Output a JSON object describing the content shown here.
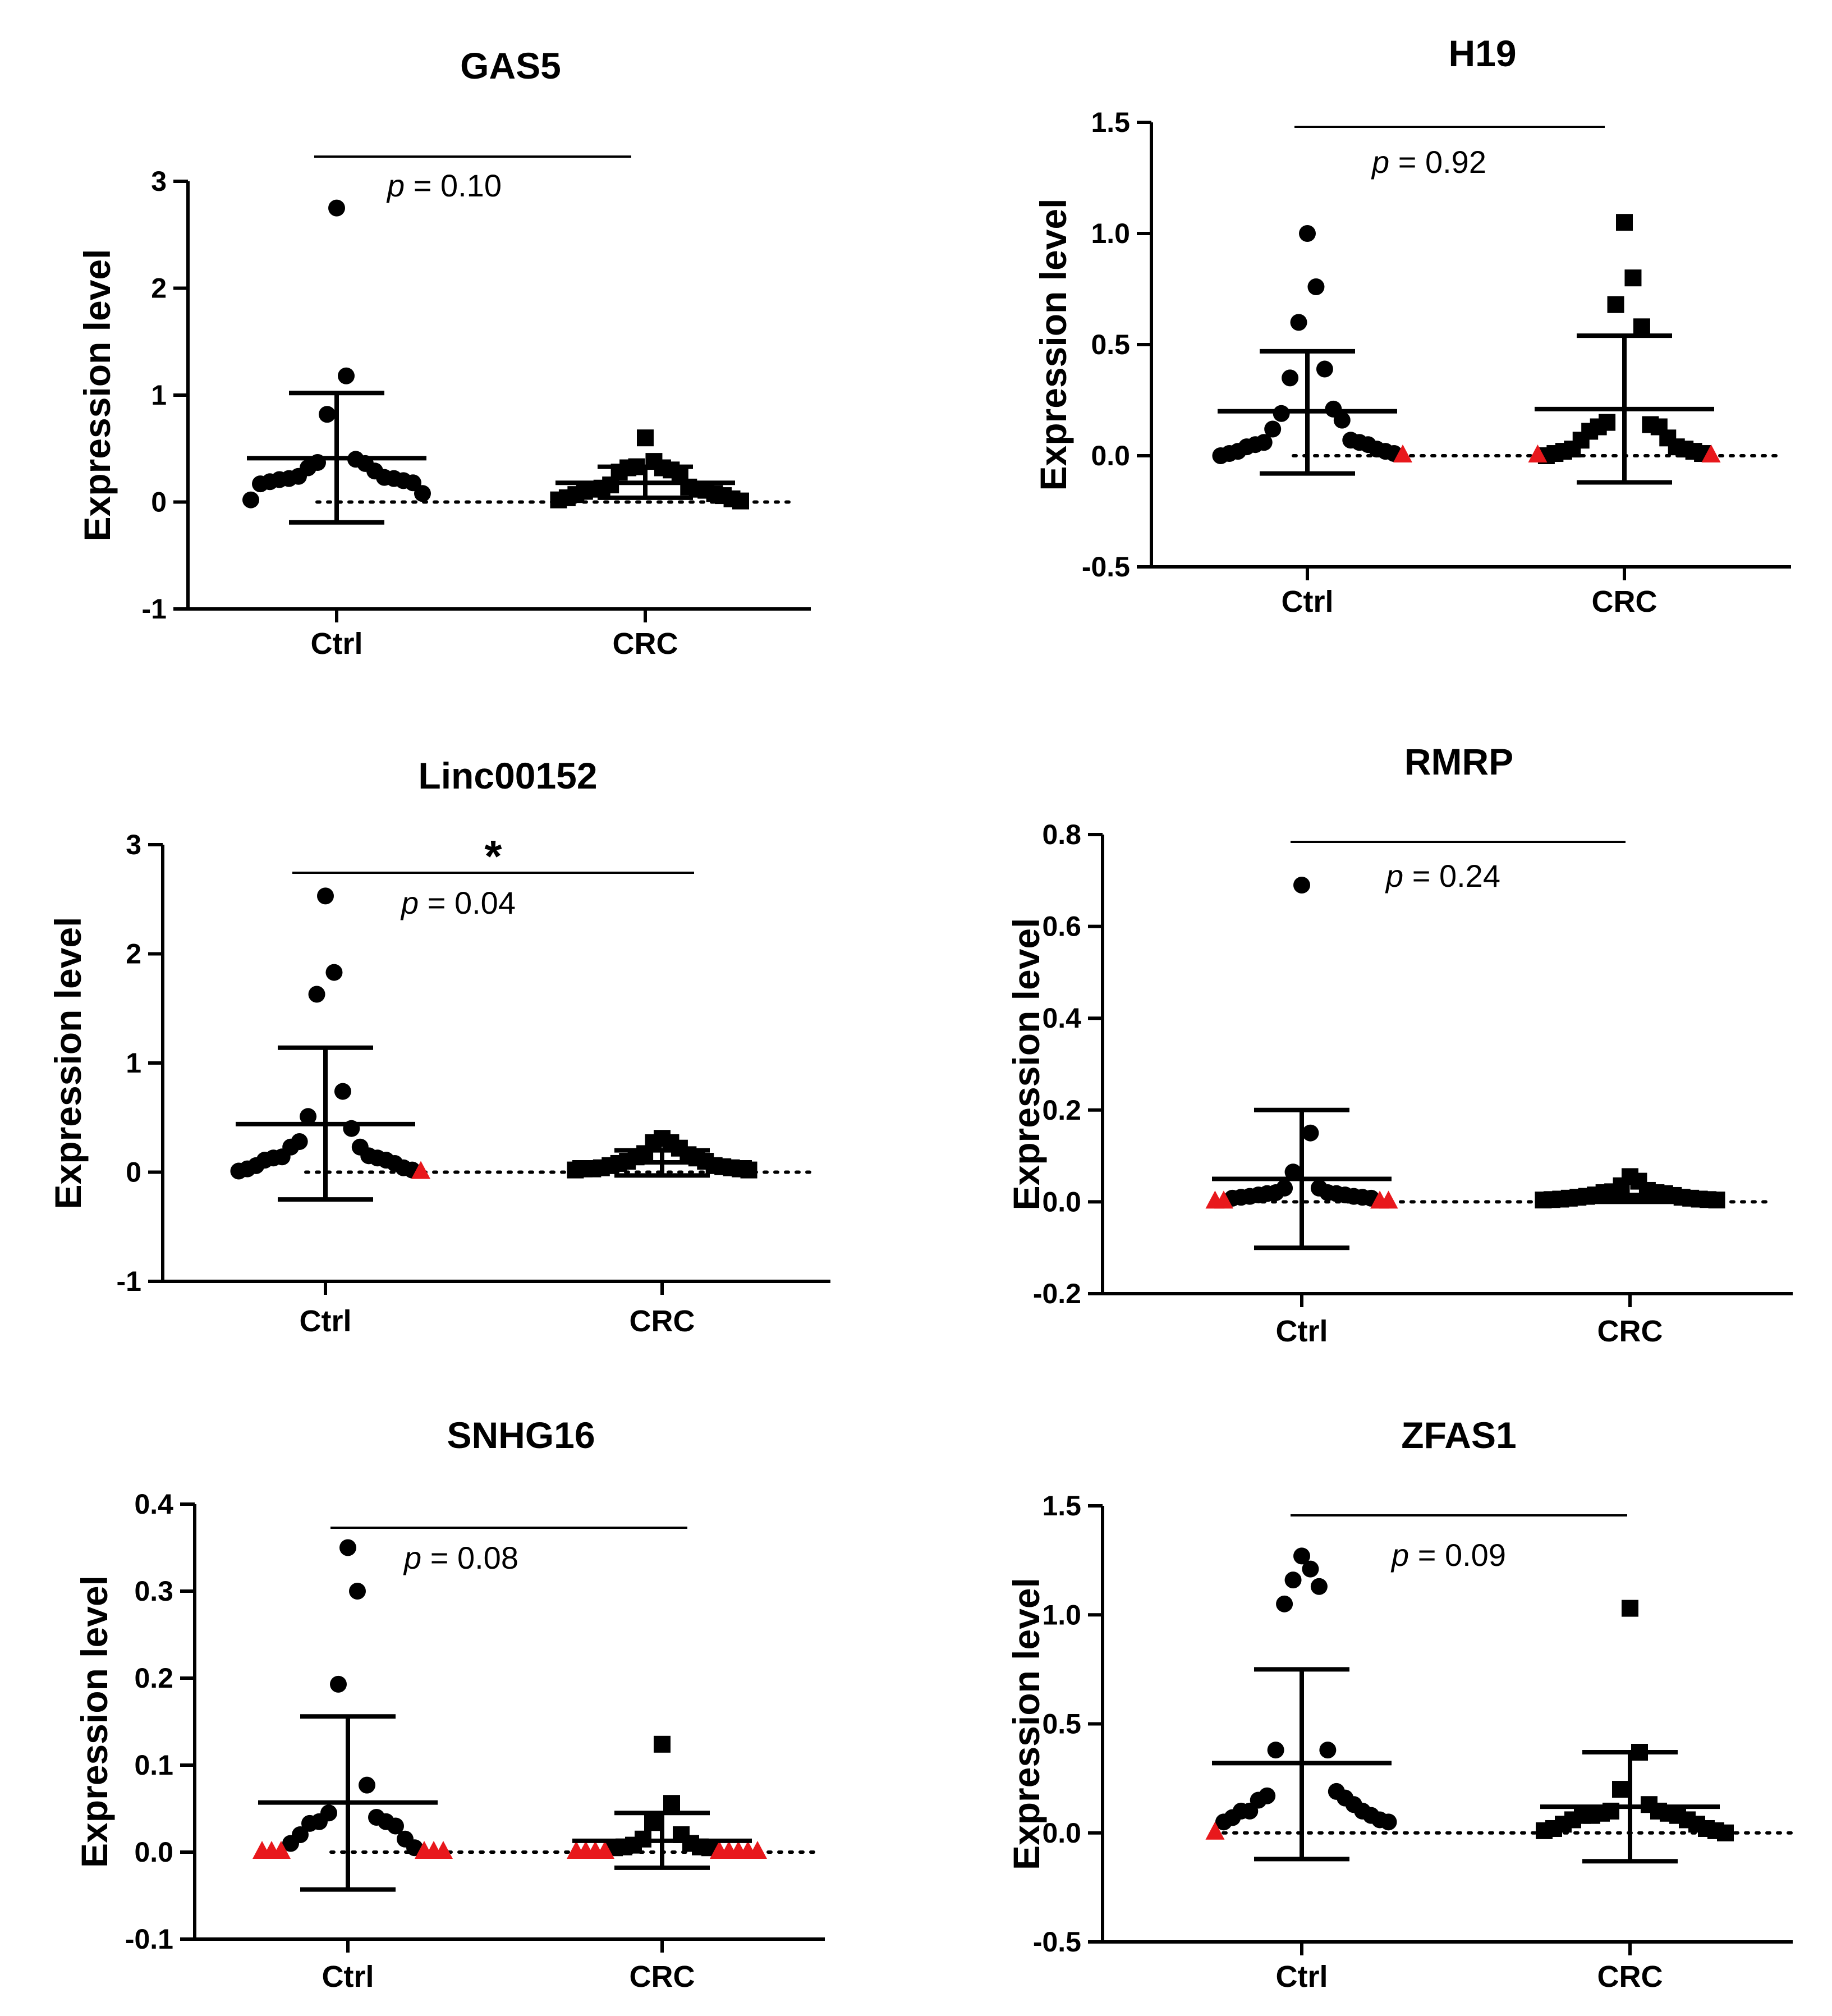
{
  "colors": {
    "ink": "#000000",
    "censored": "#e8181c"
  },
  "chart_data": [
    {
      "type": "scatter",
      "title": "GAS5",
      "ylabel": "Expression level",
      "categories": [
        "Ctrl",
        "CRC"
      ],
      "ylim": [
        -1,
        3
      ],
      "yticks": [
        "3",
        "2",
        "1",
        "0",
        "-1"
      ],
      "p_text": {
        "p": "p",
        "rest": " = 0.10"
      },
      "significance": "",
      "groups": [
        {
          "name": "Ctrl",
          "marker": "circle",
          "mean": 0.41,
          "sd_upper": 1.02,
          "sd_lower": -0.19,
          "values": [
            2.75,
            1.18,
            0.82,
            0.4,
            0.36,
            0.29,
            0.37,
            0.23,
            0.22,
            0.2,
            0.24,
            0.21,
            0.32,
            0.18,
            0.08,
            0.02,
            0.17,
            0.19,
            0.22
          ],
          "censored": []
        },
        {
          "name": "CRC",
          "marker": "square",
          "mean": 0.18,
          "sd_upper": 0.33,
          "sd_lower": 0.04,
          "values": [
            0.6,
            0.38,
            0.33,
            0.32,
            0.3,
            0.28,
            0.27,
            0.32,
            0.16,
            0.12,
            0.13,
            0.1,
            0.08,
            0.06,
            0.04,
            0.02,
            0.01,
            0.03,
            0.07,
            0.12,
            0.11,
            0.14
          ],
          "censored": []
        }
      ]
    },
    {
      "type": "scatter",
      "title": "H19",
      "ylabel": "Expression level",
      "categories": [
        "Ctrl",
        "CRC"
      ],
      "ylim": [
        -0.5,
        1.5
      ],
      "yticks": [
        "1.5",
        "1.0",
        "0.5",
        "0.0",
        "-0.5"
      ],
      "p_text": {
        "p": "p",
        "rest": " = 0.92"
      },
      "significance": "",
      "groups": [
        {
          "name": "Ctrl",
          "marker": "circle",
          "mean": 0.2,
          "sd_upper": 0.47,
          "sd_lower": -0.08,
          "values": [
            1.0,
            0.76,
            0.6,
            0.39,
            0.35,
            0.21,
            0.19,
            0.16,
            0.12,
            0.06,
            0.05,
            0.03,
            0.02,
            0.01,
            0.0,
            0.01,
            0.02,
            0.04,
            0.05,
            0.06,
            0.07
          ],
          "censored": [
            0.0
          ]
        },
        {
          "name": "CRC",
          "marker": "square",
          "mean": 0.21,
          "sd_upper": 0.54,
          "sd_lower": -0.12,
          "values": [
            1.05,
            0.8,
            0.68,
            0.58,
            0.13,
            0.14,
            0.15,
            0.13,
            0.11,
            0.08,
            0.03,
            0.02,
            0.01,
            0.0,
            0.01,
            0.02,
            0.03,
            0.04,
            0.07
          ],
          "censored": [
            0.0,
            0.0
          ]
        }
      ]
    },
    {
      "type": "scatter",
      "title": "Linc00152",
      "ylabel": "Expression level",
      "categories": [
        "Ctrl",
        "CRC"
      ],
      "ylim": [
        -1,
        3
      ],
      "yticks": [
        "3",
        "2",
        "1",
        "0",
        "-1"
      ],
      "p_text": {
        "p": "p",
        "rest": " = 0.04"
      },
      "significance": "*",
      "groups": [
        {
          "name": "Ctrl",
          "marker": "circle",
          "mean": 0.44,
          "sd_upper": 1.14,
          "sd_lower": -0.25,
          "values": [
            2.53,
            1.83,
            1.63,
            0.74,
            0.51,
            0.4,
            0.28,
            0.23,
            0.23,
            0.15,
            0.13,
            0.11,
            0.08,
            0.04,
            0.02,
            0.01,
            0.03,
            0.06,
            0.11,
            0.13,
            0.14
          ],
          "censored": [
            0.0
          ]
        },
        {
          "name": "CRC",
          "marker": "square",
          "mean": 0.09,
          "sd_upper": 0.2,
          "sd_lower": -0.03,
          "values": [
            0.31,
            0.27,
            0.27,
            0.22,
            0.17,
            0.16,
            0.13,
            0.1,
            0.08,
            0.06,
            0.05,
            0.04,
            0.03,
            0.03,
            0.02,
            0.02,
            0.03,
            0.04,
            0.06,
            0.1,
            0.14
          ],
          "censored": []
        }
      ]
    },
    {
      "type": "scatter",
      "title": "RMRP",
      "ylabel": "Expression level",
      "categories": [
        "Ctrl",
        "CRC"
      ],
      "ylim": [
        -0.2,
        0.8
      ],
      "yticks": [
        "0.8",
        "0.6",
        "0.4",
        "0.2",
        "0.0",
        "-0.2"
      ],
      "p_text": {
        "p": "p",
        "rest": " = 0.24"
      },
      "significance": "",
      "groups": [
        {
          "name": "Ctrl",
          "marker": "circle",
          "mean": 0.05,
          "sd_upper": 0.2,
          "sd_lower": -0.1,
          "values": [
            0.69,
            0.15,
            0.065,
            0.03,
            0.03,
            0.02,
            0.018,
            0.015,
            0.012,
            0.01,
            0.008,
            0.008,
            0.01,
            0.012,
            0.015,
            0.018,
            0.02
          ],
          "censored": [
            0.0,
            0.0,
            0.0,
            0.0
          ]
        },
        {
          "name": "CRC",
          "marker": "square",
          "mean": 0.008,
          "sd_upper": 0.015,
          "sd_lower": 0.0,
          "values": [
            0.055,
            0.045,
            0.035,
            0.025,
            0.022,
            0.02,
            0.018,
            0.015,
            0.012,
            0.01,
            0.008,
            0.006,
            0.005,
            0.004,
            0.004,
            0.005,
            0.006,
            0.008,
            0.01,
            0.014,
            0.02
          ],
          "censored": []
        }
      ]
    },
    {
      "type": "scatter",
      "title": "SNHG16",
      "ylabel": "Expression level",
      "categories": [
        "Ctrl",
        "CRC"
      ],
      "ylim": [
        -0.1,
        0.4
      ],
      "yticks": [
        "0.4",
        "0.3",
        "0.2",
        "0.1",
        "0.0",
        "-0.1"
      ],
      "p_text": {
        "p": "p",
        "rest": " = 0.08"
      },
      "significance": "",
      "groups": [
        {
          "name": "Ctrl",
          "marker": "circle",
          "mean": 0.057,
          "sd_upper": 0.156,
          "sd_lower": -0.043,
          "values": [
            0.35,
            0.3,
            0.193,
            0.077,
            0.045,
            0.04,
            0.035,
            0.035,
            0.033,
            0.03,
            0.02,
            0.015,
            0.01,
            0.005
          ],
          "censored": [
            0.0,
            0.0,
            0.0,
            0.0,
            0.0,
            0.0
          ]
        },
        {
          "name": "CRC",
          "marker": "square",
          "mean": 0.013,
          "sd_upper": 0.045,
          "sd_lower": -0.018,
          "values": [
            0.124,
            0.056,
            0.034,
            0.02,
            0.015,
            0.01,
            0.008,
            0.006,
            0.005,
            0.005,
            0.006
          ],
          "censored": [
            0.0,
            0.0,
            0.0,
            0.0,
            0.0,
            0.0,
            0.0,
            0.0,
            0.0
          ]
        }
      ]
    },
    {
      "type": "scatter",
      "title": "ZFAS1",
      "ylabel": "Expression level",
      "categories": [
        "Ctrl",
        "CRC"
      ],
      "ylim": [
        -0.5,
        1.5
      ],
      "yticks": [
        "1.5",
        "1.0",
        "0.5",
        "0.0",
        "-0.5"
      ],
      "p_text": {
        "p": "p",
        "rest": " = 0.09"
      },
      "significance": "",
      "groups": [
        {
          "name": "Ctrl",
          "marker": "circle",
          "mean": 0.32,
          "sd_upper": 0.75,
          "sd_lower": -0.12,
          "values": [
            1.27,
            1.21,
            1.16,
            1.13,
            1.05,
            0.38,
            0.38,
            0.19,
            0.16,
            0.15,
            0.17,
            0.13,
            0.1,
            0.07,
            0.05,
            0.05,
            0.06,
            0.08,
            0.1,
            0.1
          ],
          "censored": [
            0.0
          ]
        },
        {
          "name": "CRC",
          "marker": "square",
          "mean": 0.12,
          "sd_upper": 0.37,
          "sd_lower": -0.13,
          "values": [
            1.03,
            0.37,
            0.2,
            0.13,
            0.1,
            0.09,
            0.08,
            0.06,
            0.04,
            0.02,
            0.01,
            0.0,
            0.01,
            0.02,
            0.04,
            0.06,
            0.08,
            0.1,
            0.09,
            0.08
          ],
          "censored": []
        }
      ]
    }
  ]
}
